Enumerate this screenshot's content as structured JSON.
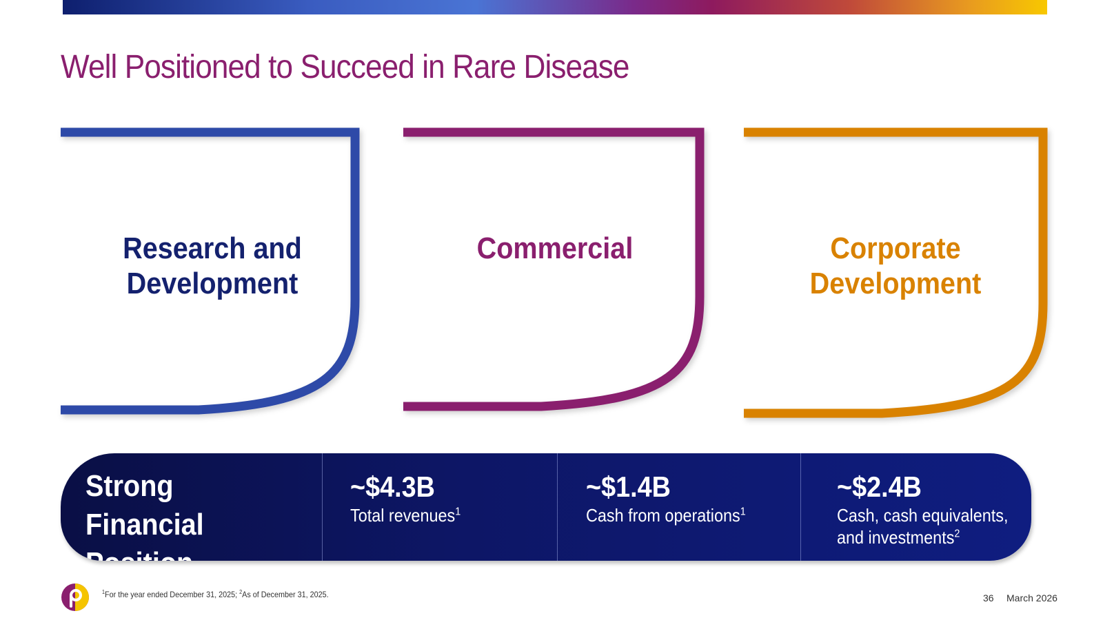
{
  "title": "Well Positioned to Succeed in Rare Disease",
  "pillars": [
    {
      "label_line1": "Research and",
      "label_line2": "Development",
      "color": "#2e4aa8"
    },
    {
      "label_line1": "Commercial",
      "label_line2": "",
      "color": "#8a1f6e"
    },
    {
      "label_line1": "Corporate",
      "label_line2": "Development",
      "color": "#d98200"
    }
  ],
  "financial": {
    "label_line1": "Strong Financial",
    "label_line2": "Position",
    "stats": [
      {
        "value": "~$4.3B",
        "desc_line1": "Total revenues",
        "sup1": "1",
        "desc_line2": "",
        "sup2": ""
      },
      {
        "value": "~$1.4B",
        "desc_line1": "Cash from operations",
        "sup1": "1",
        "desc_line2": "",
        "sup2": ""
      },
      {
        "value": "~$2.4B",
        "desc_line1": "Cash, cash equivalents,",
        "sup1": "",
        "desc_line2": "and investments",
        "sup2": "2"
      }
    ]
  },
  "footer": {
    "footnote_sup1": "1",
    "footnote_text1": "For the year ended December 31, 2025; ",
    "footnote_sup2": "2",
    "footnote_text2": "As of December 31, 2025.",
    "page_number": "36",
    "date": "March 2026"
  },
  "colors": {
    "title": "#8a1f6e",
    "rd": "#2e4aa8",
    "commercial": "#8a1f6e",
    "corporate": "#d98200",
    "financial_bar": "#0d1665"
  },
  "icons": {
    "logo": "company-logo-icon"
  }
}
